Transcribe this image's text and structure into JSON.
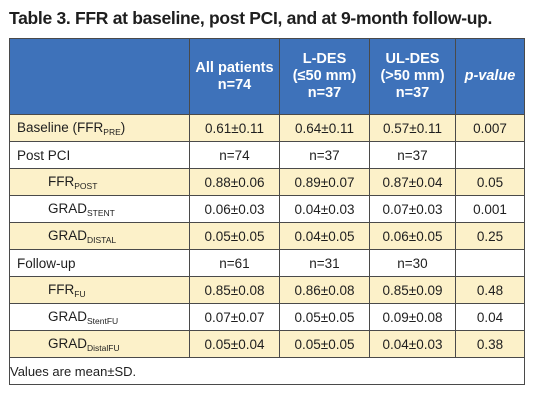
{
  "title": "Table 3. FFR at baseline, post PCI, and at 9-month follow-up.",
  "header": {
    "col0": "",
    "col1": [
      "All patients",
      "n=74"
    ],
    "col2": [
      "L-DES",
      "(≤50 mm)",
      "n=37"
    ],
    "col3": [
      "UL-DES",
      "(>50 mm)",
      "n=37"
    ],
    "col4": "p-value"
  },
  "rows": [
    {
      "main": "Baseline (FFR",
      "sub": "PRE",
      "tail": ")",
      "indent": false,
      "shade": true,
      "cells": [
        "0.61±0.11",
        "0.64±0.11",
        "0.57±0.11",
        "0.007"
      ]
    },
    {
      "main": "Post PCI",
      "sub": "",
      "tail": "",
      "indent": false,
      "shade": false,
      "cells": [
        "n=74",
        "n=37",
        "n=37",
        ""
      ]
    },
    {
      "main": "FFR",
      "sub": "POST",
      "tail": "",
      "indent": true,
      "shade": true,
      "cells": [
        "0.88±0.06",
        "0.89±0.07",
        "0.87±0.04",
        "0.05"
      ]
    },
    {
      "main": "GRAD",
      "sub": "STENT",
      "tail": "",
      "indent": true,
      "shade": false,
      "cells": [
        "0.06±0.03",
        "0.04±0.03",
        "0.07±0.03",
        "0.001"
      ]
    },
    {
      "main": "GRAD",
      "sub": "DISTAL",
      "tail": "",
      "indent": true,
      "shade": true,
      "cells": [
        "0.05±0.05",
        "0.04±0.05",
        "0.06±0.05",
        "0.25"
      ]
    },
    {
      "main": "Follow-up",
      "sub": "",
      "tail": "",
      "indent": false,
      "shade": false,
      "cells": [
        "n=61",
        "n=31",
        "n=30",
        ""
      ]
    },
    {
      "main": "FFR",
      "sub": "FU",
      "tail": "",
      "indent": true,
      "shade": true,
      "cells": [
        "0.85±0.08",
        "0.86±0.08",
        "0.85±0.09",
        "0.48"
      ]
    },
    {
      "main": "GRAD",
      "sub": "StentFU",
      "tail": "",
      "indent": true,
      "shade": false,
      "cells": [
        "0.07±0.07",
        "0.05±0.05",
        "0.09±0.08",
        "0.04"
      ]
    },
    {
      "main": "GRAD",
      "sub": "DistalFU",
      "tail": "",
      "indent": true,
      "shade": true,
      "cells": [
        "0.05±0.04",
        "0.05±0.05",
        "0.04±0.03",
        "0.38"
      ]
    }
  ],
  "footnote": "Values are mean±SD.",
  "colors": {
    "header_bg": "#3e72ba",
    "shade_row": "#fcf1c9",
    "border": "#4a4a4a"
  }
}
